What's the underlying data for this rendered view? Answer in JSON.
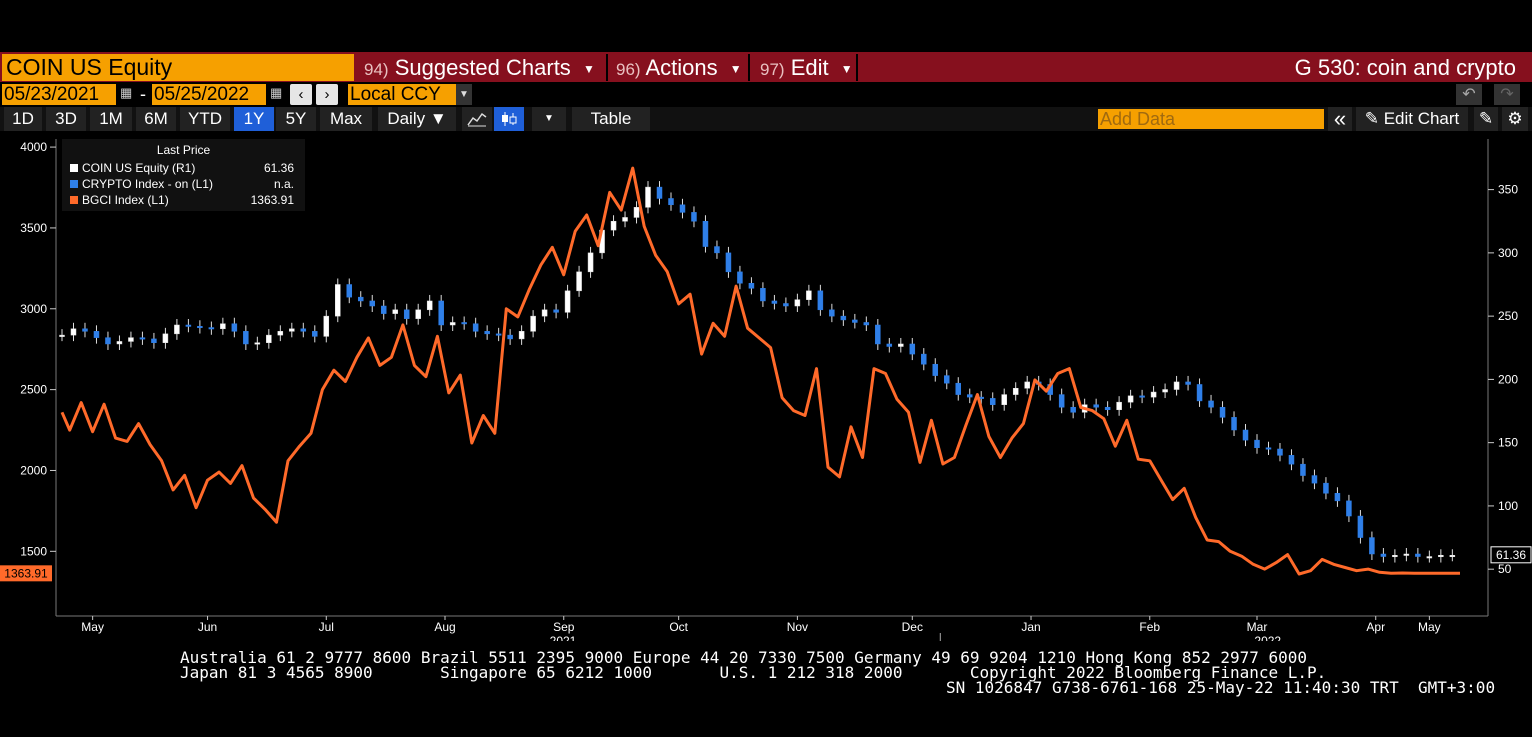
{
  "toolbar": {
    "security": "COIN US Equity",
    "menu": [
      {
        "num": "94)",
        "label": "Suggested Charts"
      },
      {
        "num": "96)",
        "label": "Actions"
      },
      {
        "num": "97)",
        "label": "Edit"
      }
    ],
    "chart_title": "G 530: coin and crypto"
  },
  "dates": {
    "start": "05/23/2021",
    "separator": "-",
    "end": "05/25/2022",
    "currency": "Local CCY"
  },
  "ranges": [
    "1D",
    "3D",
    "1M",
    "6M",
    "YTD",
    "1Y",
    "5Y",
    "Max"
  ],
  "active_range": "1Y",
  "frequency": "Daily ▼",
  "table_label": "Table",
  "add_data_placeholder": "Add Data",
  "edit_chart_label": "Edit Chart",
  "icons": {
    "prev": "‹",
    "next": "›",
    "undo": "↶",
    "redo": "↷",
    "collapse": "«",
    "pencil": "✎",
    "settings": "⚙",
    "caret": "▼"
  },
  "legend": {
    "header": "Last Price",
    "items": [
      {
        "name": "COIN US Equity  (R1)",
        "value": "61.36",
        "color": "#ffffff"
      },
      {
        "name": "CRYPTO Index -  on   (L1)",
        "value": "n.a.",
        "color": "#2f7fe8"
      },
      {
        "name": "BGCI Index  (L1)",
        "value": "1363.91",
        "color": "#ff6a2a"
      }
    ]
  },
  "footer": {
    "line1": "Australia 61 2 9777 8600 Brazil 5511 2395 9000 Europe 44 20 7330 7500 Germany 49 69 9204 1210 Hong Kong 852 2977 6000",
    "line2": "Japan 81 3 4565 8900       Singapore 65 6212 1000       U.S. 1 212 318 2000       Copyright 2022 Bloomberg Finance L.P.",
    "line3": "SN 1026847 G738-6761-168 25-May-22 11:40:30 TRT  GMT+3:00"
  },
  "chart_data": {
    "type": "line",
    "x_months": [
      "May",
      "Jun",
      "Jul",
      "Aug",
      "Sep",
      "Oct",
      "Nov",
      "Dec",
      "Jan",
      "Feb",
      "Mar",
      "Apr",
      "May"
    ],
    "year_labels": [
      {
        "after": "Aug",
        "label": "2021"
      },
      {
        "after": "Feb",
        "label": "2022"
      }
    ],
    "left_axis": {
      "ticks": [
        1500,
        2000,
        2500,
        3000,
        3500,
        4000
      ],
      "range": [
        1100,
        4050
      ]
    },
    "right_axis": {
      "ticks": [
        50,
        100,
        150,
        200,
        250,
        300,
        350
      ],
      "range": [
        13,
        390
      ]
    },
    "last_labels": {
      "right": "61.36",
      "left": "1363.91"
    },
    "colors": {
      "bgci": "#ff6a2a",
      "coin_up": "#ffffff",
      "coin_down": "#2f7fe8"
    },
    "series": [
      {
        "name": "BGCI Index",
        "axis": "left",
        "x": [
          0,
          2,
          5,
          8,
          11,
          14,
          17,
          20,
          23,
          26,
          29,
          32,
          35,
          38,
          41,
          44,
          47,
          50,
          53,
          56,
          59,
          62,
          65,
          68,
          71,
          74,
          77,
          80,
          83,
          86,
          89,
          92,
          95,
          98,
          101,
          104,
          107,
          110,
          113,
          116,
          119,
          122,
          125,
          128,
          131,
          134,
          137,
          140,
          143,
          146,
          149,
          152,
          155,
          158,
          161,
          164,
          167,
          170,
          173,
          176,
          179,
          182,
          185,
          188,
          191,
          194,
          197,
          200,
          203,
          206,
          209,
          212,
          215,
          218,
          221,
          224,
          227,
          230,
          233,
          236,
          239,
          242,
          245,
          248,
          251,
          254,
          257,
          260,
          263,
          266,
          269,
          272,
          275,
          278,
          281,
          284,
          287,
          290,
          293,
          296,
          299,
          302,
          305,
          308,
          311,
          314,
          317,
          320,
          323,
          326,
          329,
          332,
          335,
          338,
          341,
          344,
          347,
          350,
          353,
          356,
          359,
          362,
          365
        ],
        "values": [
          2360,
          2250,
          2420,
          2240,
          2410,
          2200,
          2180,
          2290,
          2160,
          2060,
          1880,
          1970,
          1770,
          1940,
          1990,
          1920,
          2030,
          1830,
          1760,
          1680,
          2060,
          2150,
          2230,
          2500,
          2620,
          2550,
          2700,
          2820,
          2650,
          2700,
          2900,
          2650,
          2580,
          2830,
          2480,
          2590,
          2170,
          2340,
          2230,
          3000,
          2950,
          3120,
          3270,
          3380,
          3210,
          3480,
          3580,
          3390,
          3720,
          3610,
          3870,
          3510,
          3330,
          3230,
          3030,
          3090,
          2720,
          2910,
          2830,
          3140,
          2880,
          2820,
          2760,
          2450,
          2370,
          2340,
          2630,
          2020,
          1960,
          2270,
          2080,
          2630,
          2600,
          2440,
          2360,
          2050,
          2310,
          2040,
          2080,
          2280,
          2470,
          2210,
          2080,
          2200,
          2290,
          2560,
          2490,
          2600,
          2630,
          2390,
          2370,
          2320,
          2150,
          2310,
          2070,
          2060,
          1940,
          1820,
          1890,
          1710,
          1570,
          1560,
          1500,
          1470,
          1420,
          1390,
          1430,
          1480,
          1360,
          1380,
          1450,
          1420,
          1400,
          1380,
          1390,
          1370,
          1364,
          1366,
          1364,
          1365,
          1364,
          1364,
          1364
        ],
        "note": ""
      },
      {
        "name": "COIN US Equity",
        "axis": "right",
        "x": [
          0,
          3,
          6,
          9,
          12,
          15,
          18,
          21,
          24,
          27,
          30,
          33,
          36,
          39,
          42,
          45,
          48,
          51,
          54,
          57,
          60,
          63,
          66,
          69,
          72,
          75,
          78,
          81,
          84,
          87,
          90,
          93,
          96,
          99,
          102,
          105,
          108,
          111,
          114,
          117,
          120,
          123,
          126,
          129,
          132,
          135,
          138,
          141,
          144,
          147,
          150,
          153,
          156,
          159,
          162,
          165,
          168,
          171,
          174,
          177,
          180,
          183,
          186,
          189,
          192,
          195,
          198,
          201,
          204,
          207,
          210,
          213,
          216,
          219,
          222,
          225,
          228,
          231,
          234,
          237,
          240,
          243,
          246,
          249,
          252,
          255,
          258,
          261,
          264,
          267,
          270,
          273,
          276,
          279,
          282,
          285,
          288,
          291,
          294,
          297,
          300,
          303,
          306,
          309,
          312,
          315,
          318,
          321,
          324,
          327,
          330,
          333,
          336,
          339,
          342,
          345,
          348,
          351,
          354,
          357,
          360,
          363
        ],
        "values": [
          235,
          240,
          238,
          233,
          228,
          230,
          233,
          232,
          229,
          236,
          243,
          242,
          241,
          240,
          244,
          238,
          228,
          229,
          235,
          238,
          240,
          238,
          234,
          250,
          275,
          265,
          262,
          258,
          252,
          255,
          248,
          255,
          262,
          243,
          245,
          244,
          238,
          236,
          235,
          232,
          238,
          250,
          255,
          253,
          270,
          285,
          300,
          318,
          325,
          328,
          336,
          352,
          343,
          338,
          332,
          325,
          305,
          300,
          285,
          276,
          272,
          262,
          260,
          258,
          263,
          270,
          255,
          250,
          247,
          245,
          243,
          228,
          226,
          228,
          220,
          212,
          203,
          197,
          188,
          186,
          185,
          180,
          188,
          193,
          198,
          196,
          188,
          178,
          174,
          180,
          178,
          176,
          182,
          187,
          186,
          190,
          192,
          198,
          196,
          183,
          178,
          170,
          160,
          152,
          146,
          145,
          140,
          133,
          124,
          118,
          110,
          104,
          92,
          75,
          62,
          60,
          61,
          62,
          60,
          60,
          61,
          61
        ],
        "note": ""
      }
    ]
  }
}
